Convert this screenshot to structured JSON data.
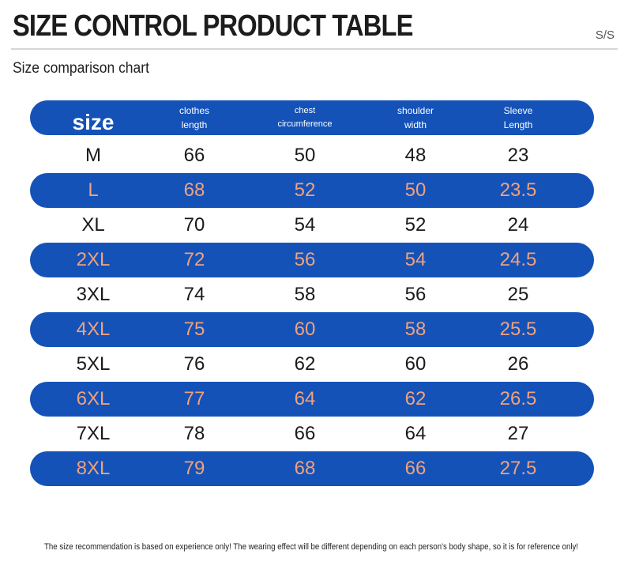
{
  "title": "SIZE CONTROL PRODUCT TABLE",
  "corner_label": "S/S",
  "subtitle": "Size comparison chart",
  "header": {
    "size": "size",
    "clothes_length": [
      "clothes",
      "length"
    ],
    "chest_circumference": [
      "chest",
      "circumference"
    ],
    "shoulder_width": [
      "shoulder",
      "width"
    ],
    "sleeve_length": [
      "Sleeve",
      "Length"
    ]
  },
  "rows": [
    [
      "M",
      "66",
      "50",
      "48",
      "23"
    ],
    [
      "L",
      "68",
      "52",
      "50",
      "23.5"
    ],
    [
      "XL",
      "70",
      "54",
      "52",
      "24"
    ],
    [
      "2XL",
      "72",
      "56",
      "54",
      "24.5"
    ],
    [
      "3XL",
      "74",
      "58",
      "56",
      "25"
    ],
    [
      "4XL",
      "75",
      "60",
      "58",
      "25.5"
    ],
    [
      "5XL",
      "76",
      "62",
      "60",
      "26"
    ],
    [
      "6XL",
      "77",
      "64",
      "62",
      "26.5"
    ],
    [
      "7XL",
      "78",
      "66",
      "64",
      "27"
    ],
    [
      "8XL",
      "79",
      "68",
      "66",
      "27.5"
    ]
  ],
  "footnote": "The size recommendation is based on experience only! The wearing effect will be different depending on each person's body shape, so it is for reference only!",
  "colors": {
    "band": "#1452b8",
    "band_text": "#f0a27a",
    "plain_text": "#1a1a1a",
    "header_text": "#ffffff"
  }
}
